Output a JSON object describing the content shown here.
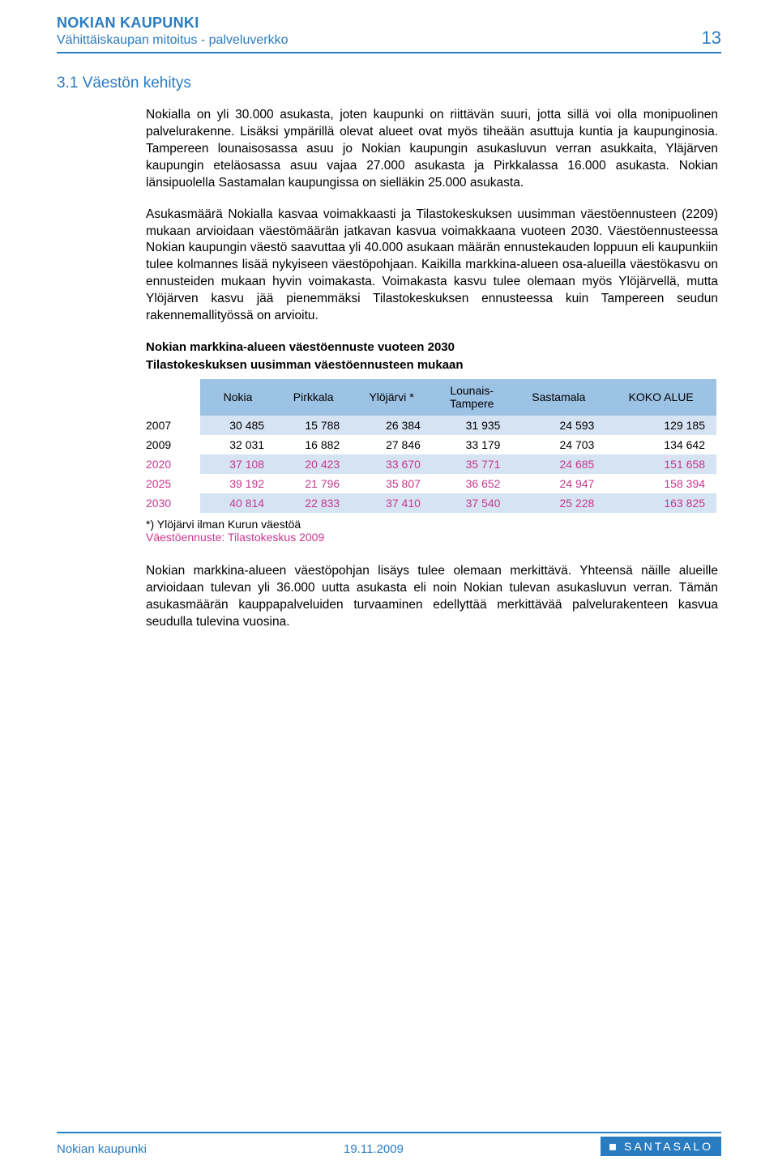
{
  "header": {
    "org": "NOKIAN KAUPUNKI",
    "subtitle": "Vähittäiskaupan mitoitus - palveluverkko",
    "page_number": "13"
  },
  "section_title": "3.1   Väestön kehitys",
  "paragraphs": {
    "p1": "Nokialla on yli 30.000 asukasta, joten kaupunki on riittävän suuri, jotta sillä voi olla monipuolinen palvelurakenne. Lisäksi ympärillä olevat alueet ovat myös tiheään asuttuja kuntia ja kaupunginosia. Tampereen lounaisosassa asuu jo Nokian kaupungin asukasluvun verran asukkaita, Yläjärven kaupungin eteläosassa asuu vajaa 27.000 asukasta ja Pirkkalassa 16.000 asukasta. Nokian länsipuolella Sastamalan kaupungissa on sielläkin 25.000 asukasta.",
    "p2": "Asukasmäärä Nokialla kasvaa voimakkaasti ja Tilastokeskuksen uusimman väestöennusteen (2209) mukaan arvioidaan väestömäärän jatkavan kasvua voimakkaana vuoteen 2030. Väestöennusteessa Nokian kaupungin väestö saavuttaa yli 40.000 asukaan määrän ennustekauden loppuun eli kaupunkiin tulee kolmannes lisää nykyiseen väestöpohjaan. Kaikilla markkina-alueen osa-alueilla väestökasvu on ennusteiden mukaan hyvin voimakasta. Voimakasta kasvu tulee olemaan myös Ylöjärvellä, mutta Ylöjärven kasvu jää pienemmäksi Tilastokeskuksen ennusteessa kuin Tampereen seudun rakennemallityössä on arvioitu.",
    "p3": "Nokian markkina-alueen väestöpohjan lisäys tulee olemaan merkittävä. Yhteensä näille alueille arvioidaan tulevan yli 36.000 uutta asukasta eli noin Nokian tulevan asukasluvun verran. Tämän asukasmäärän kauppapalveluiden turvaaminen edellyttää merkittävää palvelurakenteen kasvua seudulla tulevina vuosina."
  },
  "table": {
    "title_line1": "Nokian markkina-alueen väestöennuste vuoteen 2030",
    "title_line2": "Tilastokeskuksen uusimman väestöennusteen mukaan",
    "columns": [
      "",
      "Nokia",
      "Pirkkala",
      "Ylöjärvi *",
      "Lounais-Tampere",
      "Sastamala",
      "KOKO ALUE"
    ],
    "rows": [
      {
        "year": "2007",
        "future": false,
        "vals": [
          "30 485",
          "15 788",
          "26 384",
          "31 935",
          "24 593",
          "129 185"
        ]
      },
      {
        "year": "2009",
        "future": false,
        "vals": [
          "32 031",
          "16 882",
          "27 846",
          "33 179",
          "24 703",
          "134 642"
        ]
      },
      {
        "year": "2020",
        "future": true,
        "vals": [
          "37 108",
          "20 423",
          "33 670",
          "35 771",
          "24 685",
          "151 658"
        ]
      },
      {
        "year": "2025",
        "future": true,
        "vals": [
          "39 192",
          "21 796",
          "35 807",
          "36 652",
          "24 947",
          "158 394"
        ]
      },
      {
        "year": "2030",
        "future": true,
        "vals": [
          "40 814",
          "22 833",
          "37 410",
          "37 540",
          "25 228",
          "163 825"
        ]
      }
    ],
    "footnote1": "*) Ylöjärvi ilman Kurun väestöä",
    "footnote2": "Väestöennuste: Tilastokeskus 2009",
    "header_bg": "#9cc2e4",
    "stripe_bg": "#d5e3f2",
    "future_color": "#c9388e"
  },
  "footer": {
    "left": "Nokian kaupunki",
    "center": "19.11.2009",
    "brand": "SANTASALO"
  },
  "colors": {
    "brand_blue": "#2a7cc0"
  }
}
